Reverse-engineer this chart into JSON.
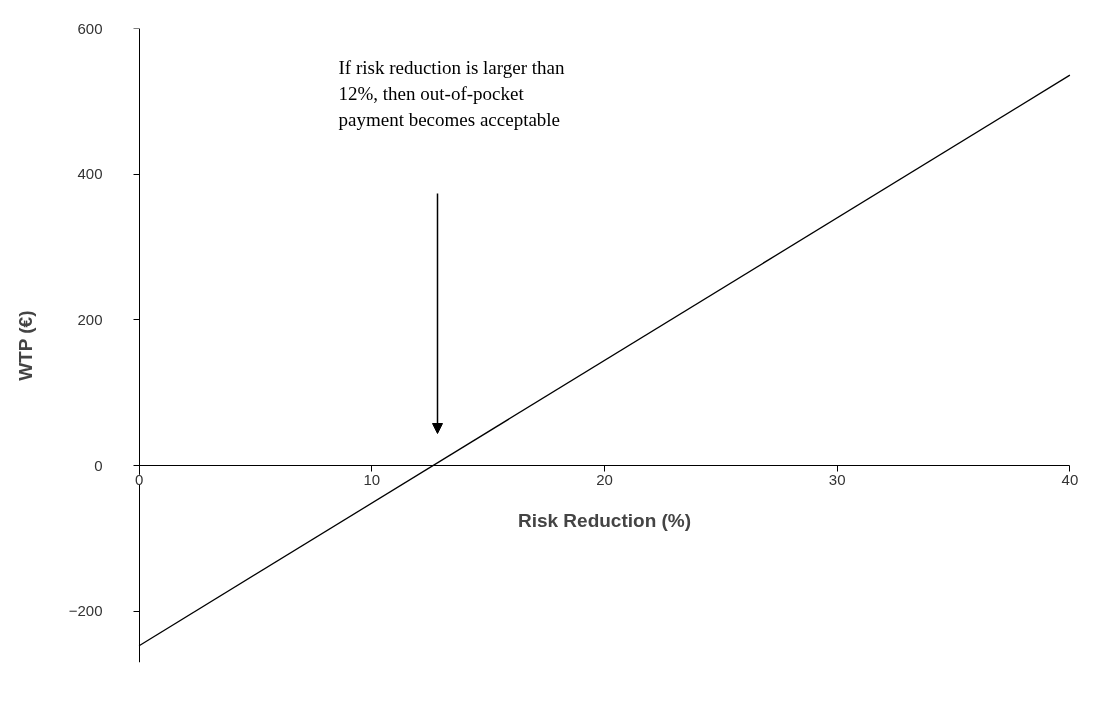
{
  "chart_data": {
    "type": "line",
    "xlabel": "Risk Reduction (%)",
    "ylabel": "WTP (€)",
    "x": [
      0,
      40
    ],
    "series": [
      {
        "color": "#000000",
        "values": [
          -247,
          536
        ]
      }
    ],
    "xlim": [
      0,
      40
    ],
    "xticks": [
      0,
      10,
      20,
      30,
      40
    ],
    "ylim": [
      -270,
      600
    ],
    "yticks": [
      -200,
      0,
      200,
      400,
      600
    ],
    "grid": false,
    "marker": "none",
    "line_style": "solid",
    "annotations": [
      "If risk reduction is larger than\n12%, then out-of-pocket\npayment becomes acceptable"
    ]
  }
}
